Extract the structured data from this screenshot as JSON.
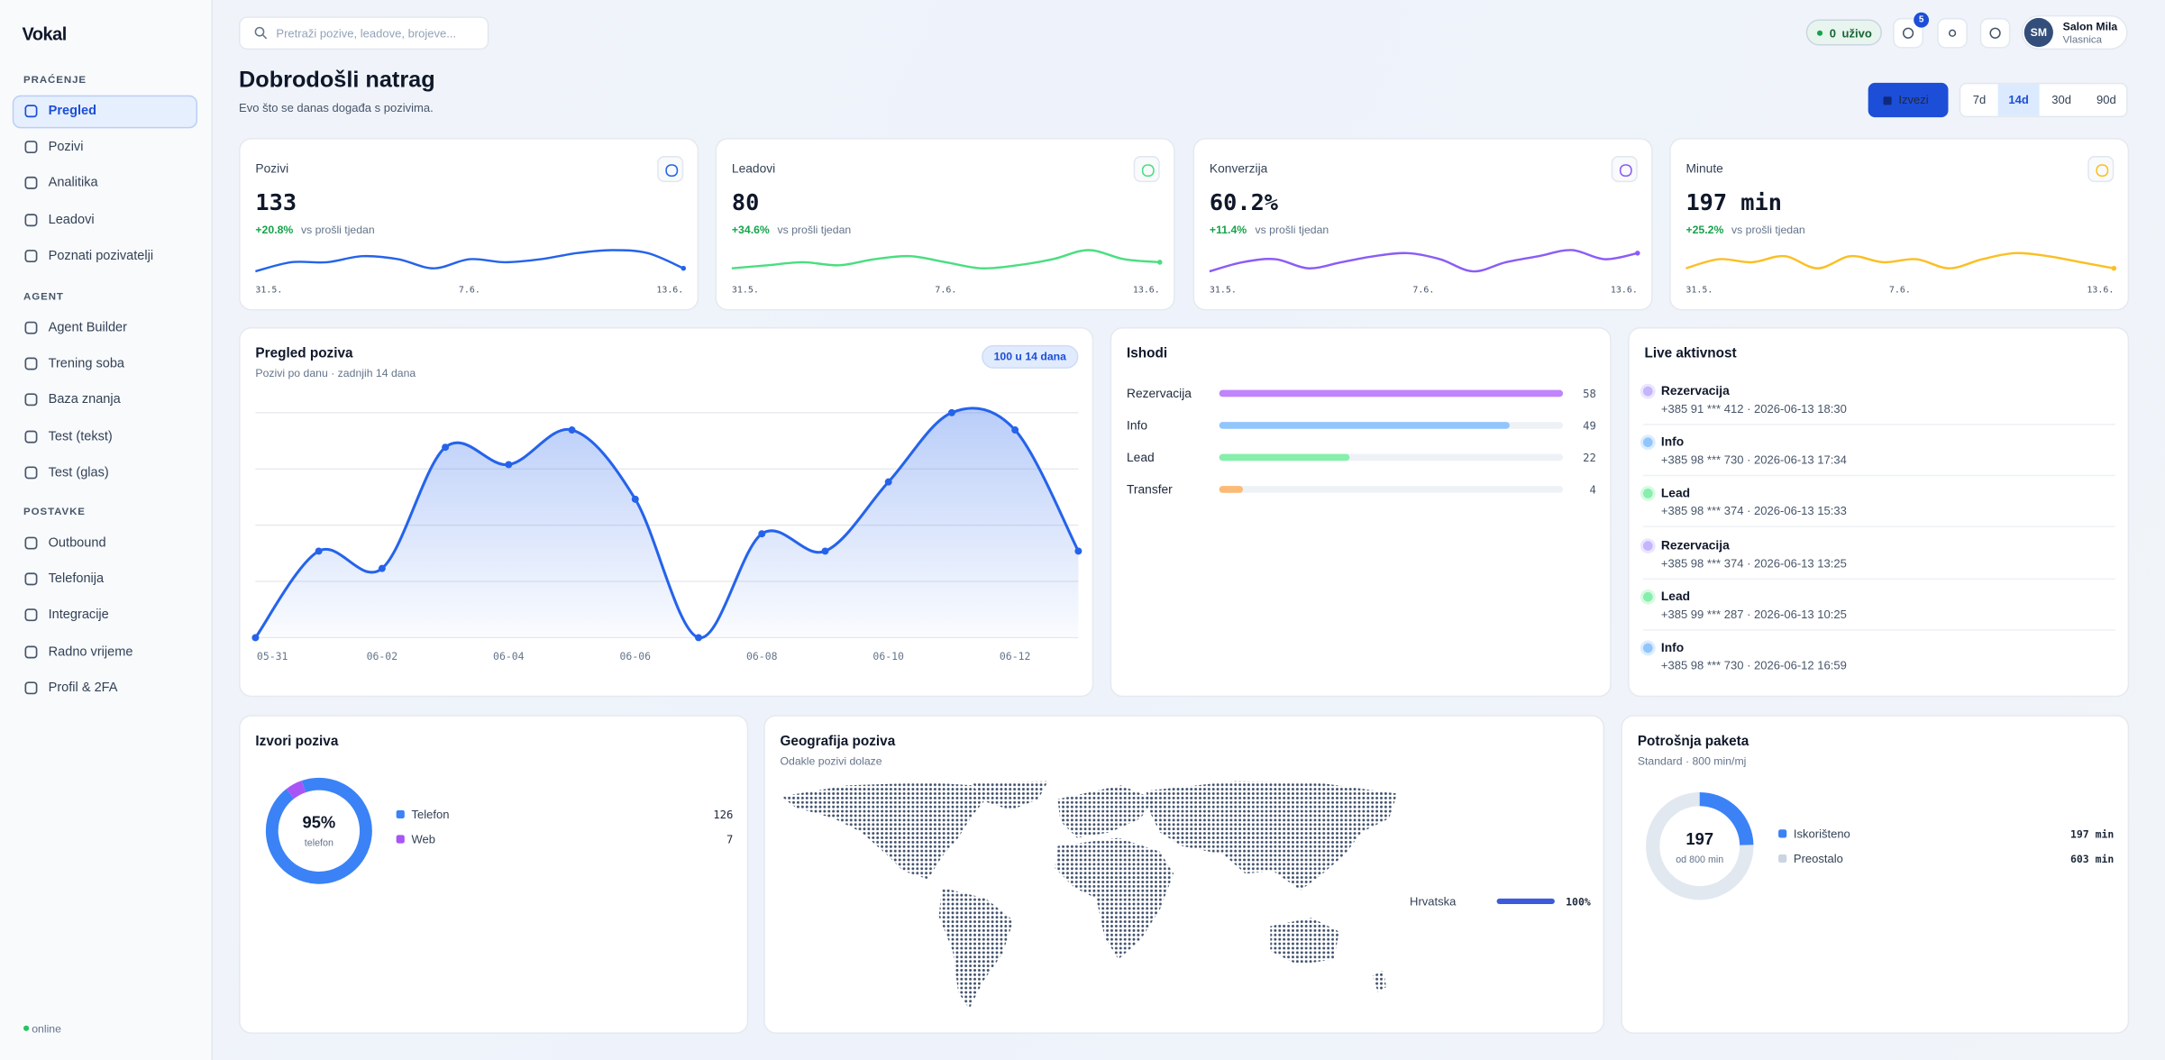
{
  "sidebar": {
    "brand": "Vokal",
    "sections": [
      {
        "title": "PRAĆENJE",
        "items": [
          "Pregled",
          "Pozivi",
          "Analitika",
          "Leadovi",
          "Poznati pozivatelji"
        ]
      },
      {
        "title": "AGENT",
        "items": [
          "Agent Builder",
          "Trening soba",
          "Baza znanja",
          "Test (tekst)",
          "Test (glas)"
        ]
      },
      {
        "title": "POSTAVKE",
        "items": [
          "Outbound",
          "Telefonija",
          "Integracije",
          "Radno vrijeme",
          "Profil & 2FA"
        ]
      }
    ],
    "active": [
      0,
      0
    ],
    "status": "online"
  },
  "topbar": {
    "search_placeholder": "Pretraži pozive, leadove, brojeve...",
    "live_count": 0,
    "live_label": "uživo",
    "notifications": 5,
    "user": {
      "initials": "SM",
      "name": "Salon Mila",
      "role": "Vlasnica"
    }
  },
  "header": {
    "title": "Dobrodošli natrag",
    "subtitle": "Evo što se danas događa s pozivima.",
    "export": "Izvezi",
    "ranges": [
      "7d",
      "14d",
      "30d",
      "90d"
    ],
    "active_range": 1
  },
  "kpis": [
    {
      "label": "Pozivi",
      "value": "133",
      "change": "+20.8%",
      "change_text": "vs prošli tjedan",
      "color": "#2563eb",
      "spark": [
        2,
        5,
        5,
        7,
        6,
        3,
        6,
        5,
        6,
        8,
        9,
        8,
        3
      ],
      "ylim": [
        0,
        10
      ],
      "x_labels": [
        "31.5.",
        "7.6.",
        "13.6."
      ]
    },
    {
      "label": "Leadovi",
      "value": "80",
      "change": "+34.6%",
      "change_text": "vs prošli tjedan",
      "color": "#4ade80",
      "spark": [
        3,
        4,
        5,
        4,
        6,
        7,
        5,
        3,
        4,
        6,
        9,
        6,
        5
      ],
      "ylim": [
        0,
        10
      ],
      "x_labels": [
        "31.5.",
        "7.6.",
        "13.6."
      ]
    },
    {
      "label": "Konverzija",
      "value": "60.2%",
      "change": "+11.4%",
      "change_text": "vs prošli tjedan",
      "color": "#8b5cf6",
      "spark": [
        2,
        5,
        6,
        3,
        5,
        7,
        8,
        6,
        2,
        5,
        7,
        9,
        6,
        8
      ],
      "ylim": [
        0,
        10
      ],
      "x_labels": [
        "31.5.",
        "7.6.",
        "13.6."
      ]
    },
    {
      "label": "Minute",
      "value": "197 min",
      "change": "+25.2%",
      "change_text": "vs prošli tjedan",
      "color": "#fbbf24",
      "spark": [
        3,
        6,
        5,
        7,
        3,
        7,
        5,
        6,
        3,
        6,
        8,
        7,
        5,
        3
      ],
      "ylim": [
        0,
        10
      ],
      "x_labels": [
        "31.5.",
        "7.6.",
        "13.6."
      ]
    }
  ],
  "call_overview": {
    "type": "line",
    "title": "Pregled poziva",
    "subtitle": "Pozivi po danu · zadnjih 14 dana",
    "badge": "100 u 14 dana",
    "categories": [
      "05-31",
      null,
      "06-02",
      null,
      "06-04",
      null,
      "06-06",
      null,
      "06-08",
      null,
      "06-10",
      null,
      "06-12",
      null
    ],
    "values": [
      0,
      5,
      4,
      11,
      10,
      12,
      8,
      0,
      6,
      5,
      9,
      13,
      12,
      5
    ],
    "color": "#2563eb",
    "ylim": [
      0,
      13
    ],
    "yticks": [
      0,
      3.25,
      6.5,
      9.75,
      13
    ],
    "grid": true
  },
  "outcomes": {
    "type": "bar",
    "title": "Ishodi",
    "categories": [
      "Rezervacija",
      "Info",
      "Lead",
      "Transfer"
    ],
    "values": [
      58,
      49,
      22,
      4
    ],
    "colors": [
      "#c084fc",
      "#93c5fd",
      "#86efac",
      "#fdba74"
    ],
    "xlim": [
      0,
      58
    ]
  },
  "live": {
    "title": "Live aktivnost",
    "items": [
      {
        "label": "Rezervacija",
        "detail": "+385 91 *** 412 · 2026-06-13 18:30",
        "color": "#c4b5fd"
      },
      {
        "label": "Info",
        "detail": "+385 98 *** 730 · 2026-06-13 17:34",
        "color": "#93c5fd"
      },
      {
        "label": "Lead",
        "detail": "+385 98 *** 374 · 2026-06-13 15:33",
        "color": "#86efac"
      },
      {
        "label": "Rezervacija",
        "detail": "+385 98 *** 374 · 2026-06-13 13:25",
        "color": "#c4b5fd"
      },
      {
        "label": "Lead",
        "detail": "+385 99 *** 287 · 2026-06-13 10:25",
        "color": "#86efac"
      },
      {
        "label": "Info",
        "detail": "+385 98 *** 730 · 2026-06-12 16:59",
        "color": "#93c5fd"
      }
    ]
  },
  "sources": {
    "type": "pie",
    "title": "Izvori poziva",
    "center": "95%",
    "center_caption": "telefon",
    "items": [
      {
        "name": "Telefon",
        "value": 126,
        "color": "#3b82f6"
      },
      {
        "name": "Web",
        "value": 7,
        "color": "#a855f7"
      }
    ]
  },
  "geo": {
    "title": "Geografija poziva",
    "subtitle": "Odakle pozivi dolaze",
    "items": [
      {
        "name": "Hrvatska",
        "value": 100,
        "label": "100%",
        "color": "#3b5bdb"
      }
    ],
    "xlim": [
      0,
      100
    ]
  },
  "package": {
    "type": "pie",
    "title": "Potrošnja paketa",
    "subtitle": "Standard · 800 min/mj",
    "center_caption": "od 800 min",
    "items": [
      {
        "name": "Iskorišteno",
        "value": 197,
        "label": "197 min",
        "color": "#3b82f6"
      },
      {
        "name": "Preostalo",
        "value": 603,
        "label": "603 min",
        "color": "#e2e8f0"
      }
    ]
  }
}
